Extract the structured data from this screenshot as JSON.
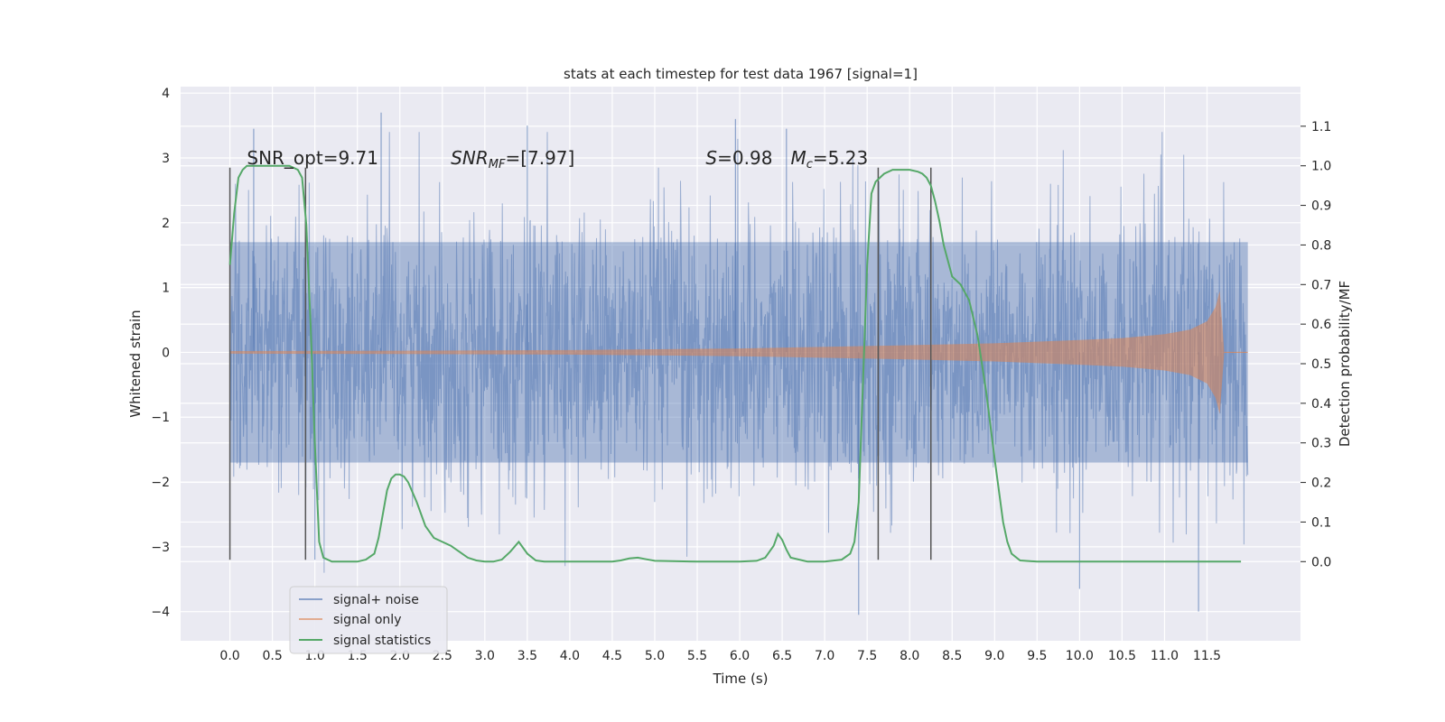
{
  "chart_data": {
    "type": "line",
    "title": "stats at each timestep for test data 1967 [signal=1]",
    "xlabel": "Time (s)",
    "ylabel": "Whitened strain",
    "ylabel_right": "Detection probability/MF",
    "xlim": [
      -0.58,
      12.6
    ],
    "ylim": [
      -4.45,
      4.1
    ],
    "ylim_right": [
      -0.2,
      1.2
    ],
    "x_ticks": [
      0.0,
      0.5,
      1.0,
      1.5,
      2.0,
      2.5,
      3.0,
      3.5,
      4.0,
      4.5,
      5.0,
      5.5,
      6.0,
      6.5,
      7.0,
      7.5,
      8.0,
      8.5,
      9.0,
      9.5,
      10.0,
      10.5,
      11.0,
      11.5
    ],
    "x_tick_labels": [
      "0.0",
      "0.5",
      "1.0",
      "1.5",
      "2.0",
      "2.5",
      "3.0",
      "3.5",
      "4.0",
      "4.5",
      "5.0",
      "5.5",
      "6.0",
      "6.5",
      "7.0",
      "7.5",
      "8.0",
      "8.5",
      "9.0",
      "9.5",
      "10.0",
      "10.5",
      "11.0",
      "11.5"
    ],
    "y_ticks": [
      -4,
      -3,
      -2,
      -1,
      0,
      1,
      2,
      3,
      4
    ],
    "y_tick_labels": [
      "−4",
      "−3",
      "−2",
      "−1",
      "0",
      "1",
      "2",
      "3",
      "4"
    ],
    "y_ticks_right": [
      0.0,
      0.1,
      0.2,
      0.3,
      0.4,
      0.5,
      0.6,
      0.7,
      0.8,
      0.9,
      1.0,
      1.1
    ],
    "y_tick_labels_right": [
      "0.0",
      "0.1",
      "0.2",
      "0.3",
      "0.4",
      "0.5",
      "0.6",
      "0.7",
      "0.8",
      "0.9",
      "1.0",
      "1.1"
    ],
    "grid": true,
    "legend_position": "lower-left",
    "annotations": [
      {
        "text": "SNR_opt=9.71",
        "x": 0.2,
        "y": 3.0
      },
      {
        "text": "SNR",
        "sub": "MF",
        "rest": "=[7.97]",
        "italic": true,
        "x": 2.6,
        "y": 3.0
      },
      {
        "text": "S",
        "rest": "=0.98",
        "italic": true,
        "x": 5.6,
        "y": 3.0
      },
      {
        "text": "M",
        "sub": "c",
        "rest": "=5.23",
        "italic": true,
        "x": 6.6,
        "y": 3.0
      }
    ],
    "vertical_markers": [
      0.0,
      0.89,
      7.63,
      8.25
    ],
    "vertical_marker_range": [
      -3.2,
      2.85
    ],
    "series": [
      {
        "name": "signal+ noise",
        "axis": "left",
        "color": "#4c72b0",
        "t_range": [
          0.0,
          11.98
        ],
        "band_core": [
          -1.7,
          1.7
        ],
        "notable_peaks": [
          {
            "x": 1.78,
            "y": 3.7
          },
          {
            "x": 5.95,
            "y": 3.6
          },
          {
            "x": 6.55,
            "y": 3.45
          },
          {
            "x": 0.28,
            "y": 3.45
          },
          {
            "x": 3.5,
            "y": 3.5
          },
          {
            "x": 7.4,
            "y": -4.05
          },
          {
            "x": 10.0,
            "y": -3.65
          },
          {
            "x": 11.4,
            "y": -4.0
          },
          {
            "x": 1.0,
            "y": -3.2
          }
        ]
      },
      {
        "name": "signal only",
        "axis": "left",
        "color": "#dd8452",
        "t_range": [
          0.0,
          11.98
        ],
        "envelope_x": [
          0.0,
          2.0,
          4.0,
          6.0,
          8.0,
          9.0,
          10.0,
          10.5,
          11.0,
          11.3,
          11.5,
          11.6,
          11.65,
          11.7
        ],
        "envelope_y": [
          0.02,
          0.025,
          0.035,
          0.06,
          0.11,
          0.14,
          0.19,
          0.22,
          0.28,
          0.35,
          0.48,
          0.7,
          0.95,
          0.05
        ]
      },
      {
        "name": "signal statistics",
        "axis": "right",
        "color": "#55a868",
        "x": [
          0.0,
          0.05,
          0.1,
          0.15,
          0.2,
          0.3,
          0.4,
          0.5,
          0.6,
          0.7,
          0.75,
          0.8,
          0.85,
          0.9,
          0.95,
          1.0,
          1.05,
          1.1,
          1.2,
          1.3,
          1.5,
          1.6,
          1.7,
          1.75,
          1.8,
          1.85,
          1.9,
          1.95,
          2.0,
          2.05,
          2.1,
          2.2,
          2.3,
          2.4,
          2.5,
          2.6,
          2.7,
          2.8,
          2.9,
          3.0,
          3.1,
          3.2,
          3.3,
          3.4,
          3.5,
          3.6,
          3.7,
          4.0,
          4.5,
          4.6,
          4.7,
          4.8,
          4.9,
          5.0,
          5.5,
          6.0,
          6.2,
          6.3,
          6.4,
          6.45,
          6.5,
          6.55,
          6.6,
          6.8,
          7.0,
          7.2,
          7.3,
          7.35,
          7.4,
          7.45,
          7.5,
          7.55,
          7.6,
          7.65,
          7.7,
          7.8,
          7.9,
          8.0,
          8.1,
          8.15,
          8.2,
          8.25,
          8.3,
          8.35,
          8.4,
          8.5,
          8.6,
          8.7,
          8.8,
          8.9,
          9.0,
          9.05,
          9.1,
          9.15,
          9.2,
          9.3,
          9.5,
          10.0,
          11.0,
          11.9
        ],
        "y": [
          0.75,
          0.88,
          0.97,
          0.99,
          1.0,
          1.0,
          1.0,
          1.0,
          1.0,
          1.0,
          0.995,
          0.99,
          0.97,
          0.85,
          0.6,
          0.3,
          0.05,
          0.01,
          0.0,
          0.0,
          0.0,
          0.005,
          0.02,
          0.06,
          0.12,
          0.18,
          0.21,
          0.22,
          0.22,
          0.215,
          0.2,
          0.15,
          0.09,
          0.06,
          0.05,
          0.04,
          0.025,
          0.01,
          0.003,
          0.0,
          0.0,
          0.005,
          0.025,
          0.05,
          0.02,
          0.003,
          0.0,
          0.0,
          0.0,
          0.003,
          0.008,
          0.01,
          0.006,
          0.002,
          0.0,
          0.0,
          0.002,
          0.01,
          0.04,
          0.07,
          0.055,
          0.03,
          0.01,
          0.0,
          0.0,
          0.005,
          0.02,
          0.05,
          0.15,
          0.45,
          0.75,
          0.93,
          0.96,
          0.97,
          0.98,
          0.99,
          0.99,
          0.99,
          0.985,
          0.98,
          0.97,
          0.95,
          0.91,
          0.86,
          0.8,
          0.72,
          0.7,
          0.66,
          0.57,
          0.43,
          0.26,
          0.18,
          0.1,
          0.05,
          0.02,
          0.003,
          0.0,
          0.0,
          0.0,
          0.0
        ]
      }
    ]
  }
}
